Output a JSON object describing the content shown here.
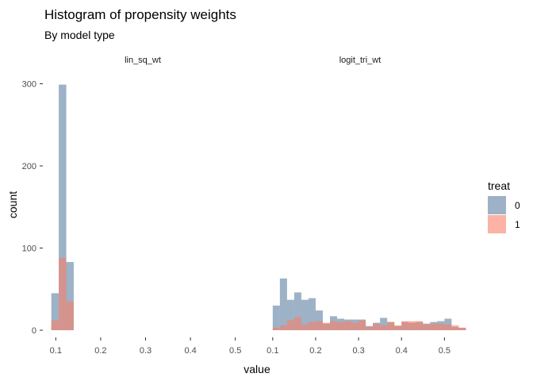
{
  "chart_data": {
    "type": "bar",
    "title": "Histogram of propensity weights",
    "subtitle": "By model type",
    "xlabel": "value",
    "ylabel": "count",
    "grid": false,
    "legend_position": "right",
    "legend": {
      "title": "treat",
      "items": [
        {
          "label": "0",
          "color": "#5c7fa0"
        },
        {
          "label": "1",
          "color": "#fa7f68"
        }
      ]
    },
    "y_ticks": [
      0,
      100,
      200,
      300
    ],
    "series_colors": {
      "0": "#5c7fa0",
      "1": "#fa7f68"
    },
    "overlap_color": "#c0726f",
    "bar_opacity": 0.6,
    "panels": [
      {
        "strip": "lin_sq_wt",
        "xlim": [
          0.08,
          0.52
        ],
        "ylim": [
          0,
          300
        ],
        "x_ticks": [
          "0.1",
          "0.2",
          "0.3",
          "0.4",
          "0.5"
        ],
        "bin_width": 0.0167,
        "bin_start": [
          0.09,
          0.1067,
          0.1233
        ],
        "series": [
          {
            "name": "0",
            "values": [
              45,
              299,
              83
            ]
          },
          {
            "name": "1",
            "values": [
              12,
              88,
              35
            ]
          }
        ]
      },
      {
        "strip": "logit_tri_wt",
        "xlim": [
          0.08,
          0.54
        ],
        "ylim": [
          0,
          300
        ],
        "x_ticks": [
          "0.1",
          "0.2",
          "0.3",
          "0.4",
          "0.5"
        ],
        "bin_width": 0.0167,
        "bin_start": [
          0.1,
          0.1167,
          0.1333,
          0.15,
          0.1667,
          0.1833,
          0.2,
          0.2167,
          0.2333,
          0.25,
          0.2667,
          0.2833,
          0.3,
          0.3167,
          0.3333,
          0.35,
          0.3667,
          0.3833,
          0.4,
          0.4167,
          0.4333,
          0.45,
          0.4667,
          0.4833,
          0.5,
          0.5167,
          0.5333
        ],
        "series": [
          {
            "name": "0",
            "values": [
              30,
              63,
              37,
              46,
              37,
              39,
              24,
              8,
              17,
              14,
              13,
              13,
              13,
              5,
              9,
              15,
              10,
              5,
              10,
              9,
              10,
              8,
              10,
              11,
              14,
              4,
              3
            ]
          },
          {
            "name": "1",
            "values": [
              3,
              6,
              12,
              16,
              7,
              10,
              11,
              9,
              11,
              10,
              11,
              9,
              12,
              4,
              8,
              6,
              10,
              6,
              11,
              11,
              11,
              7,
              8,
              8,
              7,
              6,
              3
            ]
          }
        ]
      }
    ]
  }
}
